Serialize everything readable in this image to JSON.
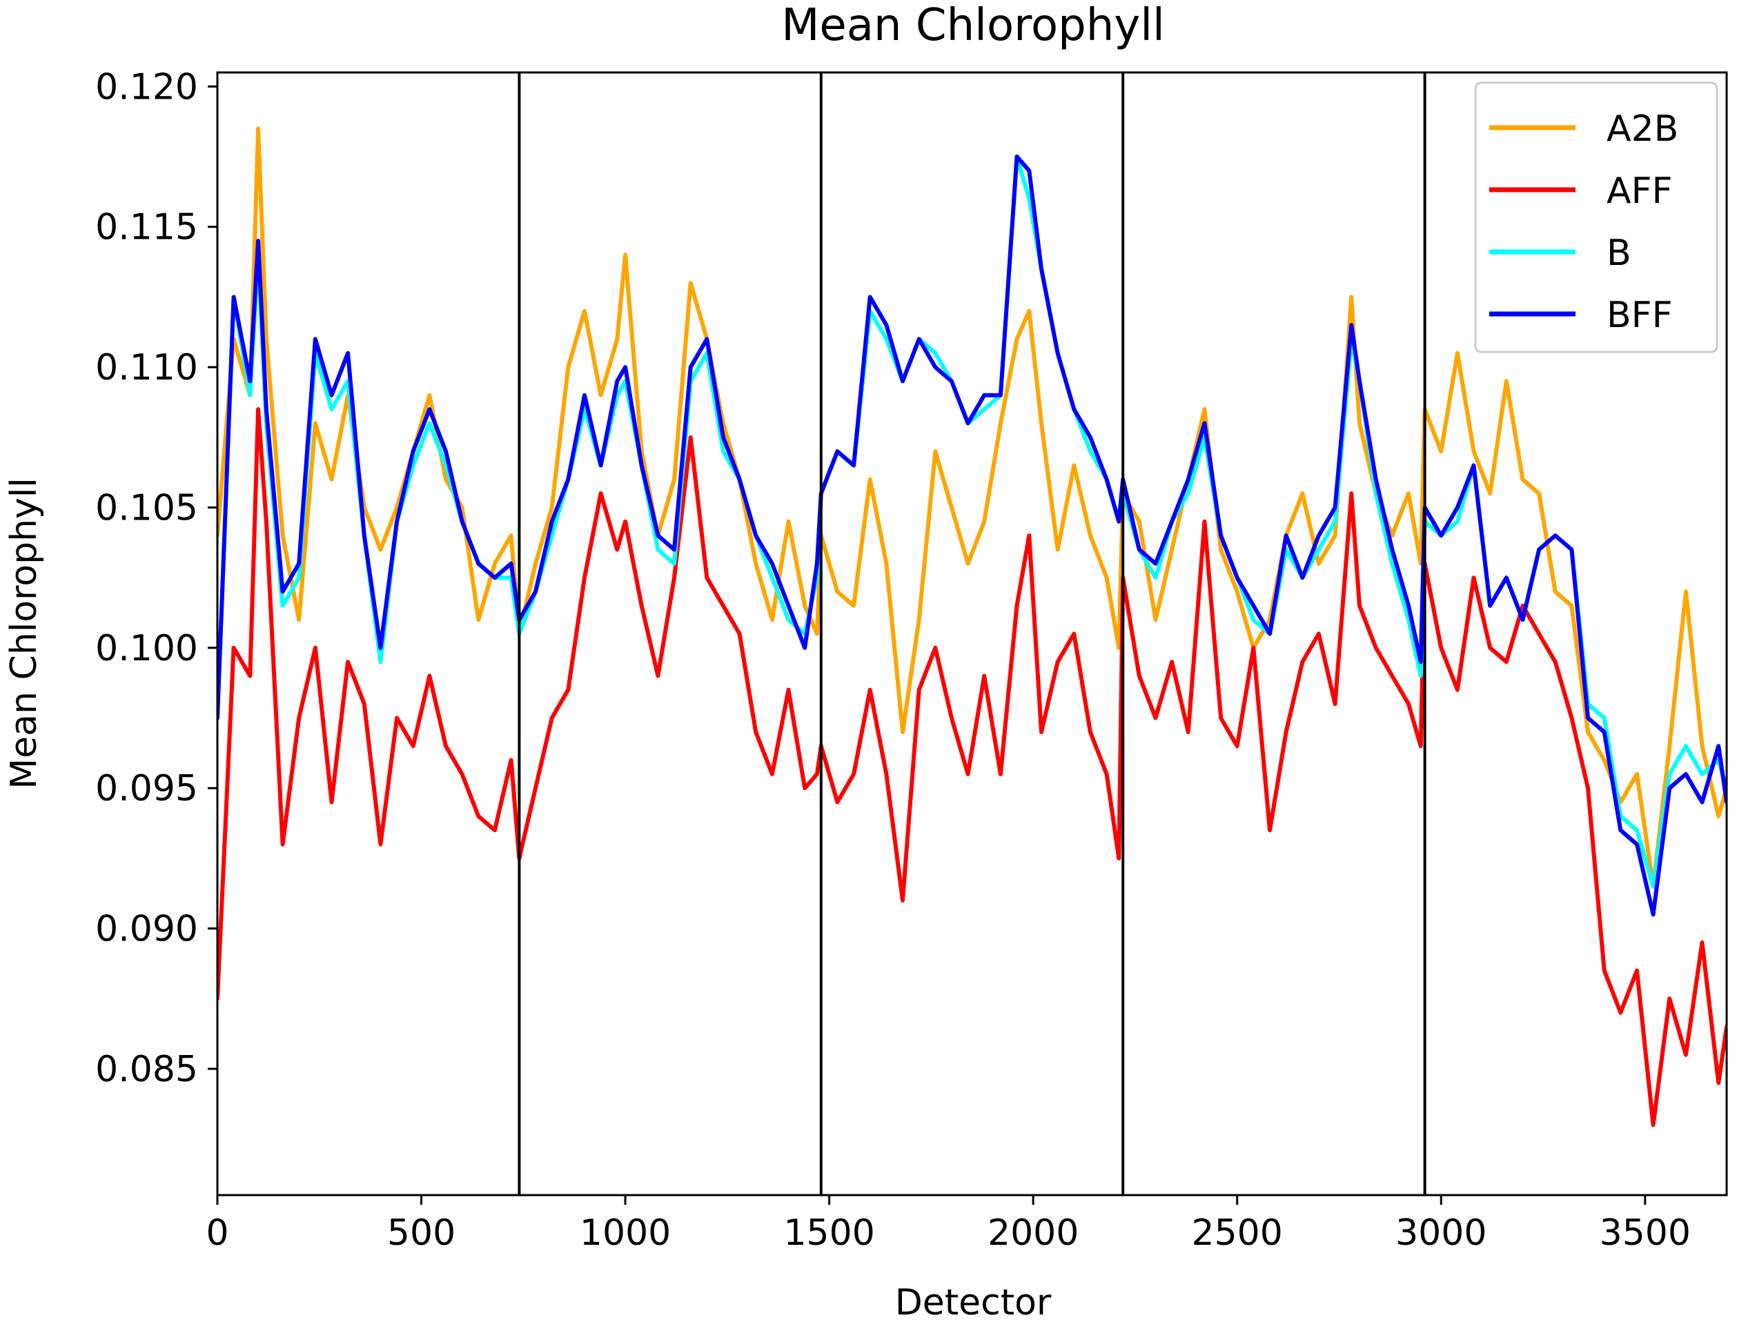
{
  "chart_data": {
    "type": "line",
    "title": "Mean Chlorophyll",
    "xlabel": "Detector",
    "ylabel": "Mean Chlorophyll",
    "xlim": [
      0,
      3700
    ],
    "ylim": [
      0.0805,
      0.1205
    ],
    "xticks": [
      0,
      500,
      1000,
      1500,
      2000,
      2500,
      3000,
      3500
    ],
    "xtick_labels": [
      "0",
      "500",
      "1000",
      "1500",
      "2000",
      "2500",
      "3000",
      "3500"
    ],
    "yticks": [
      0.085,
      0.09,
      0.095,
      0.1,
      0.105,
      0.11,
      0.115,
      0.12
    ],
    "ytick_labels": [
      "0.085",
      "0.090",
      "0.095",
      "0.100",
      "0.105",
      "0.110",
      "0.115",
      "0.120"
    ],
    "vlines": [
      740,
      1480,
      2220,
      2960
    ],
    "grid": false,
    "legend_position": "top-right",
    "x": [
      0,
      40,
      80,
      100,
      120,
      160,
      200,
      240,
      280,
      320,
      360,
      400,
      440,
      480,
      520,
      560,
      600,
      640,
      680,
      720,
      740,
      780,
      820,
      860,
      900,
      940,
      980,
      1000,
      1040,
      1080,
      1120,
      1160,
      1200,
      1240,
      1280,
      1320,
      1360,
      1400,
      1440,
      1470,
      1480,
      1520,
      1560,
      1600,
      1640,
      1680,
      1720,
      1760,
      1800,
      1840,
      1880,
      1920,
      1960,
      1990,
      2020,
      2060,
      2100,
      2140,
      2180,
      2210,
      2220,
      2260,
      2300,
      2340,
      2380,
      2420,
      2460,
      2500,
      2540,
      2580,
      2620,
      2660,
      2700,
      2740,
      2780,
      2800,
      2840,
      2880,
      2920,
      2950,
      2960,
      3000,
      3040,
      3080,
      3120,
      3160,
      3200,
      3240,
      3280,
      3320,
      3360,
      3400,
      3440,
      3480,
      3520,
      3560,
      3600,
      3640,
      3680,
      3700
    ],
    "series": [
      {
        "name": "A2B",
        "color": "#FFA500",
        "values": [
          0.104,
          0.111,
          0.109,
          0.1185,
          0.111,
          0.104,
          0.101,
          0.108,
          0.106,
          0.109,
          0.105,
          0.1035,
          0.105,
          0.107,
          0.109,
          0.106,
          0.105,
          0.101,
          0.103,
          0.104,
          0.1005,
          0.103,
          0.105,
          0.11,
          0.112,
          0.109,
          0.111,
          0.114,
          0.107,
          0.104,
          0.106,
          0.113,
          0.111,
          0.108,
          0.106,
          0.103,
          0.101,
          0.1045,
          0.1015,
          0.1005,
          0.104,
          0.102,
          0.1015,
          0.106,
          0.103,
          0.097,
          0.101,
          0.107,
          0.105,
          0.103,
          0.1045,
          0.108,
          0.111,
          0.112,
          0.108,
          0.1035,
          0.1065,
          0.104,
          0.1025,
          0.1,
          0.1055,
          0.1045,
          0.101,
          0.1035,
          0.106,
          0.1085,
          0.1035,
          0.102,
          0.1,
          0.101,
          0.104,
          0.1055,
          0.103,
          0.104,
          0.1125,
          0.108,
          0.1055,
          0.104,
          0.1055,
          0.103,
          0.1085,
          0.107,
          0.1105,
          0.107,
          0.1055,
          0.1095,
          0.106,
          0.1055,
          0.102,
          0.1015,
          0.097,
          0.096,
          0.0945,
          0.0955,
          0.0915,
          0.0965,
          0.102,
          0.0965,
          0.094,
          0.095
        ]
      },
      {
        "name": "AFF",
        "color": "#FF0000",
        "values": [
          0.0875,
          0.1,
          0.099,
          0.1085,
          0.1045,
          0.093,
          0.0975,
          0.1,
          0.0945,
          0.0995,
          0.098,
          0.093,
          0.0975,
          0.0965,
          0.099,
          0.0965,
          0.0955,
          0.094,
          0.0935,
          0.096,
          0.0925,
          0.095,
          0.0975,
          0.0985,
          0.1025,
          0.1055,
          0.1035,
          0.1045,
          0.1015,
          0.099,
          0.1025,
          0.1075,
          0.1025,
          0.1015,
          0.1005,
          0.097,
          0.0955,
          0.0985,
          0.095,
          0.0955,
          0.0965,
          0.0945,
          0.0955,
          0.0985,
          0.0955,
          0.091,
          0.0985,
          0.1,
          0.0975,
          0.0955,
          0.099,
          0.0955,
          0.1015,
          0.104,
          0.097,
          0.0995,
          0.1005,
          0.097,
          0.0955,
          0.0925,
          0.1025,
          0.099,
          0.0975,
          0.0995,
          0.097,
          0.1045,
          0.0975,
          0.0965,
          0.1,
          0.0935,
          0.097,
          0.0995,
          0.1005,
          0.098,
          0.1055,
          0.1015,
          0.1,
          0.099,
          0.098,
          0.0965,
          0.103,
          0.1,
          0.0985,
          0.1025,
          0.1,
          0.0995,
          0.1015,
          0.1005,
          0.0995,
          0.0975,
          0.095,
          0.0885,
          0.087,
          0.0885,
          0.083,
          0.0875,
          0.0855,
          0.0895,
          0.0845,
          0.0865
        ]
      },
      {
        "name": "B",
        "color": "#00FFFF",
        "values": [
          0.0975,
          0.1125,
          0.109,
          0.114,
          0.108,
          0.1015,
          0.1025,
          0.1105,
          0.1085,
          0.1095,
          0.104,
          0.0995,
          0.1045,
          0.1065,
          0.108,
          0.1065,
          0.1045,
          0.103,
          0.1025,
          0.1025,
          0.1005,
          0.102,
          0.104,
          0.106,
          0.1085,
          0.1065,
          0.109,
          0.1095,
          0.1065,
          0.1035,
          0.103,
          0.1095,
          0.1105,
          0.107,
          0.106,
          0.104,
          0.1025,
          0.101,
          0.1005,
          0.1025,
          0.1055,
          0.107,
          0.1065,
          0.112,
          0.111,
          0.1095,
          0.111,
          0.1105,
          0.1095,
          0.108,
          0.1085,
          0.109,
          0.1175,
          0.116,
          0.1135,
          0.1105,
          0.1085,
          0.107,
          0.106,
          0.1045,
          0.1055,
          0.1035,
          0.1025,
          0.1045,
          0.1055,
          0.1075,
          0.104,
          0.1025,
          0.101,
          0.1005,
          0.1035,
          0.1025,
          0.1035,
          0.1045,
          0.111,
          0.1095,
          0.1055,
          0.103,
          0.101,
          0.099,
          0.1045,
          0.104,
          0.1045,
          0.1065,
          0.1015,
          0.1025,
          0.101,
          0.1035,
          0.104,
          0.1035,
          0.098,
          0.0975,
          0.094,
          0.0935,
          0.0915,
          0.0955,
          0.0965,
          0.0955,
          0.096,
          0.095
        ]
      },
      {
        "name": "BFF",
        "color": "#0000FF",
        "values": [
          0.0975,
          0.1125,
          0.1095,
          0.1145,
          0.1085,
          0.102,
          0.103,
          0.111,
          0.109,
          0.1105,
          0.104,
          0.1,
          0.1045,
          0.107,
          0.1085,
          0.107,
          0.1045,
          0.103,
          0.1025,
          0.103,
          0.101,
          0.102,
          0.1045,
          0.106,
          0.109,
          0.1065,
          0.1095,
          0.11,
          0.1065,
          0.104,
          0.1035,
          0.11,
          0.111,
          0.1075,
          0.106,
          0.104,
          0.103,
          0.1015,
          0.1,
          0.103,
          0.1055,
          0.107,
          0.1065,
          0.1125,
          0.1115,
          0.1095,
          0.111,
          0.11,
          0.1095,
          0.108,
          0.109,
          0.109,
          0.1175,
          0.117,
          0.1135,
          0.1105,
          0.1085,
          0.1075,
          0.106,
          0.1045,
          0.106,
          0.1035,
          0.103,
          0.1045,
          0.106,
          0.108,
          0.104,
          0.1025,
          0.1015,
          0.1005,
          0.104,
          0.1025,
          0.104,
          0.105,
          0.1115,
          0.1095,
          0.106,
          0.1035,
          0.1015,
          0.0995,
          0.105,
          0.104,
          0.105,
          0.1065,
          0.1015,
          0.1025,
          0.101,
          0.1035,
          0.104,
          0.1035,
          0.0975,
          0.097,
          0.0935,
          0.093,
          0.0905,
          0.095,
          0.0955,
          0.0945,
          0.0965,
          0.0945
        ]
      }
    ]
  }
}
